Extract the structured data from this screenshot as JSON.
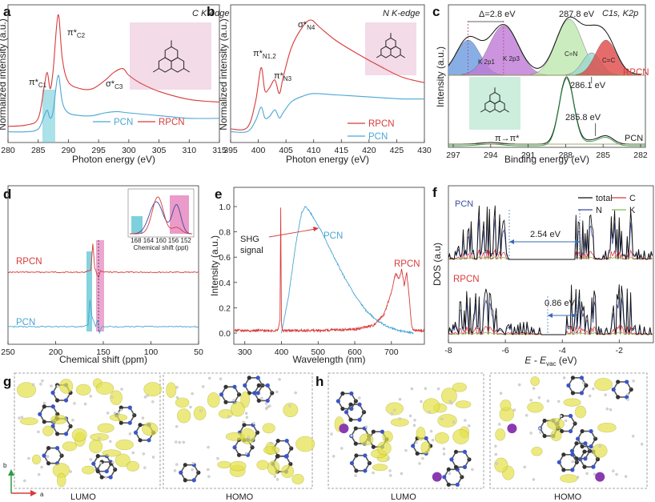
{
  "panels": {
    "a": "a",
    "b": "b",
    "c": "c",
    "d": "d",
    "e": "e",
    "f": "f",
    "g": "g",
    "h": "h"
  },
  "colors": {
    "rpcn": "#d83b3b",
    "pcn": "#4aa6d6",
    "cyan_band": "#66c8d6",
    "pink_band": "#e68ac0",
    "mol_bg_pink": "#f3dbe8",
    "mol_bg_green": "#cdeedd",
    "orbital": "#e4e24a"
  },
  "chart_data": [
    {
      "id": "a",
      "type": "line",
      "title": "C K-edge",
      "xlabel": "Photon energy (eV)",
      "ylabel": "Normalized intensity (a.u.)",
      "xlim": [
        280,
        315
      ],
      "xticks": [
        "280",
        "285",
        "290",
        "295",
        "300",
        "305",
        "310",
        "315"
      ],
      "series": [
        {
          "name": "RPCN",
          "x": [
            280,
            283,
            285,
            286,
            286.5,
            287,
            287.5,
            288.3,
            289,
            290,
            292,
            294,
            296,
            297.5,
            299,
            300,
            302,
            305,
            310,
            315
          ],
          "y": [
            0.12,
            0.13,
            0.18,
            0.42,
            0.52,
            0.4,
            0.55,
            0.95,
            0.62,
            0.45,
            0.4,
            0.4,
            0.46,
            0.52,
            0.55,
            0.5,
            0.44,
            0.38,
            0.32,
            0.3
          ]
        },
        {
          "name": "PCN",
          "x": [
            280,
            283,
            285,
            286,
            286.5,
            287,
            287.5,
            288.3,
            289,
            290,
            292,
            294,
            296,
            298,
            300,
            305,
            310,
            315
          ],
          "y": [
            0.08,
            0.08,
            0.1,
            0.2,
            0.24,
            0.18,
            0.24,
            0.5,
            0.3,
            0.22,
            0.2,
            0.2,
            0.22,
            0.23,
            0.22,
            0.2,
            0.18,
            0.18
          ]
        }
      ],
      "annotations": [
        "π*C1",
        "π*C2",
        "σ*C3"
      ],
      "legend": [
        "PCN",
        "RPCN"
      ]
    },
    {
      "id": "b",
      "type": "line",
      "title": "N K-edge",
      "xlabel": "Photon energy (eV)",
      "ylabel": "Normalized intensity (a.u.)",
      "xlim": [
        395,
        430
      ],
      "xticks": [
        "395",
        "400",
        "405",
        "410",
        "415",
        "420",
        "425",
        "430"
      ],
      "series": [
        {
          "name": "RPCN",
          "x": [
            395,
            398,
            399.5,
            400.5,
            401.2,
            402,
            403,
            403.8,
            404.5,
            406,
            408,
            409.5,
            411,
            414,
            418,
            422,
            426,
            430
          ],
          "y": [
            0.1,
            0.11,
            0.3,
            0.55,
            0.38,
            0.4,
            0.46,
            0.36,
            0.48,
            0.7,
            0.85,
            0.9,
            0.85,
            0.75,
            0.65,
            0.56,
            0.48,
            0.44
          ]
        },
        {
          "name": "PCN",
          "x": [
            395,
            398,
            399.5,
            400.5,
            401.2,
            402,
            403,
            403.8,
            404.5,
            406,
            408,
            410,
            414,
            418,
            422,
            426,
            430
          ],
          "y": [
            0.08,
            0.08,
            0.16,
            0.26,
            0.18,
            0.19,
            0.24,
            0.18,
            0.22,
            0.3,
            0.34,
            0.36,
            0.35,
            0.34,
            0.33,
            0.32,
            0.32
          ]
        }
      ],
      "annotations": [
        "π*N1,2",
        "π*N3",
        "σ*N4"
      ],
      "legend": [
        "RPCN",
        "PCN"
      ]
    },
    {
      "id": "c",
      "type": "line",
      "title": "C1s, K2p",
      "xlabel": "Binding energy (eV)",
      "ylabel": "Intensity (a.u.)",
      "xlim": [
        297,
        282
      ],
      "xticks": [
        "297",
        "294",
        "291",
        "288",
        "285",
        "282"
      ],
      "peaks": [
        {
          "name": "K 2p1",
          "center": 295.5,
          "color": "#6b9be0"
        },
        {
          "name": "K 2p3",
          "center": 292.8,
          "color": "#c07ad6"
        },
        {
          "name": "C=N",
          "center": 287.8,
          "color": "#bfe8b0"
        },
        {
          "name": "C=C",
          "center": 285.0,
          "color": "#e04848"
        }
      ],
      "annotations": [
        "Δ=2.8 eV",
        "287.8 eV",
        "286.1 eV",
        "285.8 eV",
        "π→π*"
      ],
      "legend": [
        "RPCN",
        "PCN"
      ]
    },
    {
      "id": "d",
      "type": "line",
      "xlabel": "Chemical shift (ppm)",
      "xlim": [
        250,
        50
      ],
      "xticks": [
        "250",
        "200",
        "150",
        "100",
        "50"
      ],
      "series": [
        {
          "name": "RPCN",
          "x": [
            250,
            170,
            163,
            161,
            159,
            157,
            155,
            153,
            150,
            100,
            50
          ],
          "y": [
            0.7,
            0.7,
            0.72,
            0.95,
            0.74,
            0.69,
            0.66,
            0.71,
            0.7,
            0.7,
            0.7
          ]
        },
        {
          "name": "PCN",
          "x": [
            250,
            170,
            166,
            164,
            162,
            158,
            156,
            154,
            152,
            150,
            100,
            50
          ],
          "y": [
            0.15,
            0.15,
            0.18,
            0.55,
            0.3,
            0.15,
            0.25,
            0.05,
            0.14,
            0.15,
            0.15,
            0.15
          ]
        }
      ],
      "inset": {
        "xlabel": "Chemical shift (ppt)",
        "xticks": [
          "168",
          "164",
          "160",
          "156",
          "152"
        ]
      },
      "legend": [
        "RPCN",
        "PCN"
      ]
    },
    {
      "id": "e",
      "type": "line",
      "xlabel": "Wavelength (nm)",
      "ylabel": "Intensity (a.u.)",
      "xlim": [
        270,
        790
      ],
      "ylim": [
        0,
        1.0
      ],
      "xticks": [
        "300",
        "400",
        "500",
        "600",
        "700"
      ],
      "yticks": [
        "0.0",
        "0.2",
        "0.4",
        "0.6",
        "0.8",
        "1.0"
      ],
      "series": [
        {
          "name": "PCN",
          "x": [
            400,
            420,
            440,
            455,
            465,
            475,
            490,
            510,
            540,
            570,
            600,
            630,
            660,
            690,
            720,
            740,
            760
          ],
          "y": [
            0.0,
            0.3,
            0.72,
            0.95,
            1.0,
            0.97,
            0.9,
            0.8,
            0.62,
            0.45,
            0.3,
            0.18,
            0.1,
            0.05,
            0.02,
            0.01,
            0.0
          ]
        },
        {
          "name": "RPCN",
          "x": [
            270,
            390,
            396,
            398,
            400,
            402,
            420,
            500,
            600,
            650,
            680,
            700,
            712,
            720,
            728,
            735,
            742,
            748,
            755,
            760,
            790
          ],
          "y": [
            0.02,
            0.02,
            0.1,
            1.0,
            0.08,
            0.02,
            0.02,
            0.02,
            0.03,
            0.06,
            0.15,
            0.32,
            0.48,
            0.42,
            0.5,
            0.38,
            0.48,
            0.3,
            0.06,
            0.02,
            0.02
          ]
        }
      ],
      "annotations": [
        "SHG",
        "signal"
      ],
      "legend": [
        "PCN",
        "RPCN"
      ]
    },
    {
      "id": "f",
      "type": "line",
      "xlabel": "E - E",
      "xlabel_sub": "vac",
      "xlabel_unit": " (eV)",
      "ylabel": "DOS (a.u)",
      "xlim": [
        -8,
        -0.8
      ],
      "xticks": [
        "-8",
        "-6",
        "-4",
        "-2"
      ],
      "legend": [
        "total",
        "C",
        "N",
        "K"
      ],
      "annotations": [
        "PCN",
        "RPCN",
        "2.54 eV",
        "0.86 eV"
      ]
    }
  ],
  "g_labels": {
    "lumo": "LUMO",
    "homo": "HOMO",
    "axis_b": "b",
    "axis_a": "a"
  },
  "h_labels": {
    "lumo": "LUMO",
    "homo": "HOMO"
  }
}
